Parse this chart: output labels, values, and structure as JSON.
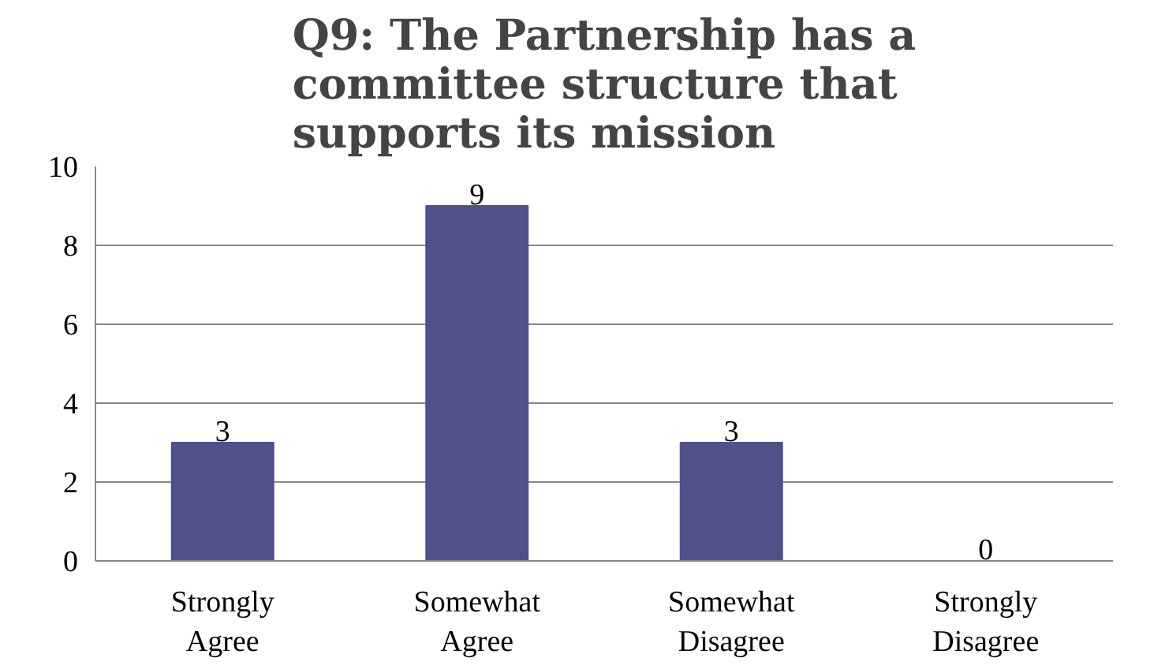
{
  "chart_data": {
    "type": "bar",
    "title": "Q9: The Partnership has a committee structure that supports its mission",
    "categories": [
      "Strongly Agree",
      "Somewhat Agree",
      "Somewhat Disagree",
      "Strongly Disagree"
    ],
    "values": [
      3,
      9,
      3,
      0
    ],
    "color": "#4f5189",
    "ylim": [
      0,
      10
    ],
    "yticks": [
      0,
      2,
      4,
      6,
      8,
      10
    ],
    "grid": "y",
    "data_labels": true
  }
}
